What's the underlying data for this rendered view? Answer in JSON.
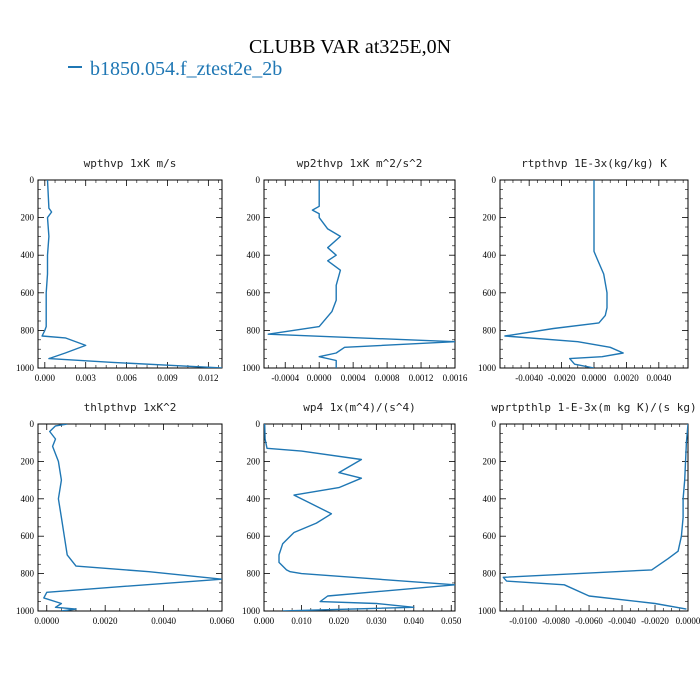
{
  "title": "CLUBB VAR at325E,0N",
  "legend": {
    "label": "b1850.054.f_ztest2e_2b",
    "color": "#1f77b4"
  },
  "chart_data": [
    {
      "type": "line",
      "title": "wpthvp 1xK m/s",
      "xlim": [
        -0.0005,
        0.013
      ],
      "ylim": [
        1000,
        0
      ],
      "xticks": [
        0,
        0.003,
        0.006,
        0.009,
        0.012
      ],
      "xtick_labels": [
        "0.000",
        "0.003",
        "0.006",
        "0.009",
        "0.012"
      ],
      "yticks": [
        0,
        200,
        400,
        600,
        800,
        1000
      ],
      "ytick_labels": [
        "0",
        "200",
        "400",
        "600",
        "800",
        "1000"
      ],
      "series": [
        {
          "x": [
            0.0002,
            0.0003,
            0.0005,
            0.0002,
            0.0003,
            0.0002,
            0.0002,
            0.0001,
            0.0001,
            0.0001,
            0.0,
            -0.0002,
            0.0015,
            0.003,
            0.0015,
            0.0003,
            0.005,
            0.009,
            0.013
          ],
          "y": [
            0,
            150,
            170,
            200,
            300,
            400,
            500,
            600,
            700,
            780,
            800,
            830,
            840,
            880,
            920,
            950,
            970,
            985,
            1000
          ]
        }
      ]
    },
    {
      "type": "line",
      "title": "wp2thvp 1xK m^2/s^2",
      "xlim": [
        -0.00065,
        0.0016
      ],
      "ylim": [
        1000,
        0
      ],
      "xticks": [
        -0.0004,
        0.0,
        0.0004,
        0.0008,
        0.0012,
        0.0016
      ],
      "xtick_labels": [
        "-0.0004",
        "0.0000",
        "0.0004",
        "0.0008",
        "0.0012",
        "0.0016"
      ],
      "yticks": [
        0,
        200,
        400,
        600,
        800,
        1000
      ],
      "ytick_labels": [
        "0",
        "200",
        "400",
        "600",
        "800",
        "1000"
      ],
      "series": [
        {
          "x": [
            0.0,
            0.0,
            -8e-05,
            0.0,
            0.0,
            0.0001,
            0.00025,
            0.0001,
            0.0002,
            0.0001,
            0.00025,
            0.0002,
            0.0002,
            0.00015,
            0.0,
            -0.0006,
            0.0016,
            0.0003,
            0.0002,
            0.0,
            0.0002,
            0.0002,
            0.0002
          ],
          "y": [
            0,
            140,
            160,
            180,
            200,
            260,
            300,
            360,
            400,
            430,
            480,
            560,
            640,
            700,
            780,
            820,
            860,
            890,
            920,
            940,
            960,
            990,
            1000
          ]
        }
      ]
    },
    {
      "type": "line",
      "title": "rtpthvp 1E-3x(kg/kg) K",
      "xlim": [
        -0.0058,
        0.0058
      ],
      "ylim": [
        1000,
        0
      ],
      "xticks": [
        -0.004,
        -0.002,
        0.0,
        0.002,
        0.004
      ],
      "xtick_labels": [
        "-0.0040",
        "-0.0020",
        "0.0000",
        "0.0020",
        "0.0040"
      ],
      "yticks": [
        0,
        200,
        400,
        600,
        800,
        1000
      ],
      "ytick_labels": [
        "0",
        "200",
        "400",
        "600",
        "800",
        "1000"
      ],
      "series": [
        {
          "x": [
            0.0,
            0.0,
            0.0,
            0.0002,
            0.0006,
            0.0008,
            0.0008,
            0.0007,
            0.0003,
            -0.0025,
            -0.0055,
            -0.001,
            0.001,
            0.0018,
            0.0005,
            -0.0015,
            -0.0012,
            0.0,
            0.0
          ],
          "y": [
            0,
            200,
            380,
            420,
            500,
            600,
            680,
            720,
            760,
            790,
            830,
            860,
            890,
            920,
            940,
            950,
            980,
            1000,
            1000
          ]
        }
      ]
    },
    {
      "type": "line",
      "title": "thlpthvp 1xK^2",
      "xlim": [
        -0.0003,
        0.006
      ],
      "ylim": [
        1000,
        0
      ],
      "xticks": [
        0.0,
        0.002,
        0.004,
        0.006
      ],
      "xtick_labels": [
        "0.0000",
        "0.0020",
        "0.0040",
        "0.0060"
      ],
      "yticks": [
        0,
        200,
        400,
        600,
        800,
        1000
      ],
      "ytick_labels": [
        "0",
        "200",
        "400",
        "600",
        "800",
        "1000"
      ],
      "series": [
        {
          "x": [
            0.0007,
            0.0003,
            0.0001,
            0.0003,
            0.0002,
            0.0004,
            0.0005,
            0.0004,
            0.0005,
            0.0006,
            0.0007,
            0.001,
            0.0035,
            0.006,
            0.0025,
            0.0,
            -0.0001,
            0.0005,
            0.0003,
            0.001,
            0.0005
          ],
          "y": [
            0,
            10,
            40,
            80,
            120,
            200,
            300,
            400,
            500,
            600,
            700,
            760,
            790,
            830,
            870,
            900,
            930,
            960,
            980,
            990,
            1000
          ]
        }
      ]
    },
    {
      "type": "line",
      "title": "wp4 1x(m^4)/(s^4)",
      "xlim": [
        0.0,
        0.051
      ],
      "ylim": [
        1000,
        0
      ],
      "xticks": [
        0.0,
        0.01,
        0.02,
        0.03,
        0.04,
        0.05
      ],
      "xtick_labels": [
        "0.000",
        "0.010",
        "0.020",
        "0.030",
        "0.040",
        "0.050"
      ],
      "yticks": [
        0,
        200,
        400,
        600,
        800,
        1000
      ],
      "ytick_labels": [
        "0",
        "200",
        "400",
        "600",
        "800",
        "1000"
      ],
      "series": [
        {
          "x": [
            0.0002,
            0.0003,
            0.0008,
            0.01,
            0.026,
            0.02,
            0.026,
            0.02,
            0.008,
            0.012,
            0.018,
            0.014,
            0.008,
            0.005,
            0.004,
            0.004,
            0.006,
            0.007,
            0.01,
            0.051,
            0.017,
            0.015,
            0.03,
            0.04,
            0.005
          ],
          "y": [
            0,
            80,
            130,
            145,
            190,
            260,
            290,
            340,
            380,
            420,
            480,
            530,
            580,
            640,
            700,
            740,
            780,
            790,
            800,
            860,
            920,
            950,
            960,
            980,
            1000
          ]
        }
      ]
    },
    {
      "type": "line",
      "title": "wprtpthlp 1-E-3x(m kg K)/(s kg)",
      "xlim": [
        -0.0114,
        0.0
      ],
      "ylim": [
        1000,
        0
      ],
      "xticks": [
        -0.01,
        -0.008,
        -0.006,
        -0.004,
        -0.002,
        0.0
      ],
      "xtick_labels": [
        "-0.0100",
        "-0.0080",
        "-0.0060",
        "-0.0040",
        "-0.0020",
        "0.0000"
      ],
      "yticks": [
        0,
        200,
        400,
        600,
        800,
        1000
      ],
      "ytick_labels": [
        "0",
        "200",
        "400",
        "600",
        "800",
        "1000"
      ],
      "series": [
        {
          "x": [
            0.0,
            -0.0001,
            -0.0002,
            -0.0003,
            -0.0003,
            -0.0004,
            -0.0006,
            -0.0012,
            -0.0022,
            -0.0112,
            -0.011,
            -0.0075,
            -0.006,
            -0.002,
            -0.0001
          ],
          "y": [
            0,
            100,
            300,
            400,
            500,
            600,
            680,
            720,
            780,
            820,
            840,
            860,
            920,
            960,
            990
          ]
        }
      ]
    }
  ]
}
